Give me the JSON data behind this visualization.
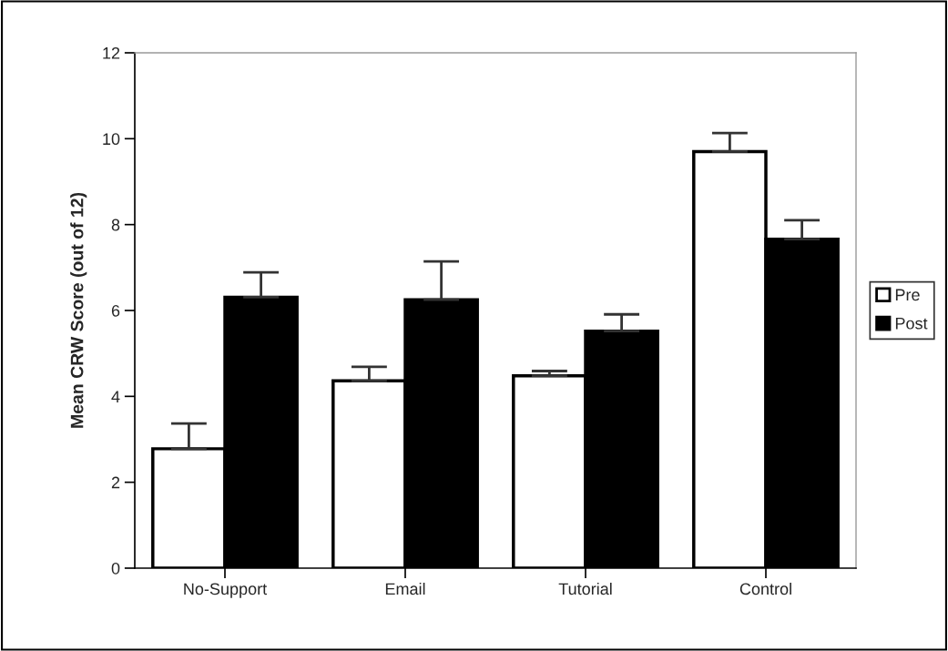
{
  "chart_data": {
    "type": "bar",
    "ylabel": "Mean CRW Score (out of 12)",
    "categories": [
      "No-Support",
      "Email",
      "Tutorial",
      "Control"
    ],
    "series": [
      {
        "name": "Pre",
        "color": "#ffffff",
        "values": [
          2.78,
          4.36,
          4.48,
          9.7
        ],
        "errors": [
          [
            2.78,
            3.37
          ],
          [
            4.36,
            4.69
          ],
          [
            4.48,
            4.59
          ],
          [
            9.7,
            10.13
          ]
        ]
      },
      {
        "name": "Post",
        "color": "#000000",
        "values": [
          6.31,
          6.25,
          5.52,
          7.66
        ],
        "errors": [
          [
            6.31,
            6.89
          ],
          [
            6.25,
            7.14
          ],
          [
            5.52,
            5.91
          ],
          [
            7.66,
            8.1
          ]
        ]
      }
    ],
    "ylim": [
      0,
      12
    ],
    "yticks": [
      0,
      2,
      4,
      6,
      8,
      10,
      12
    ],
    "grid": false,
    "legend": "right"
  }
}
